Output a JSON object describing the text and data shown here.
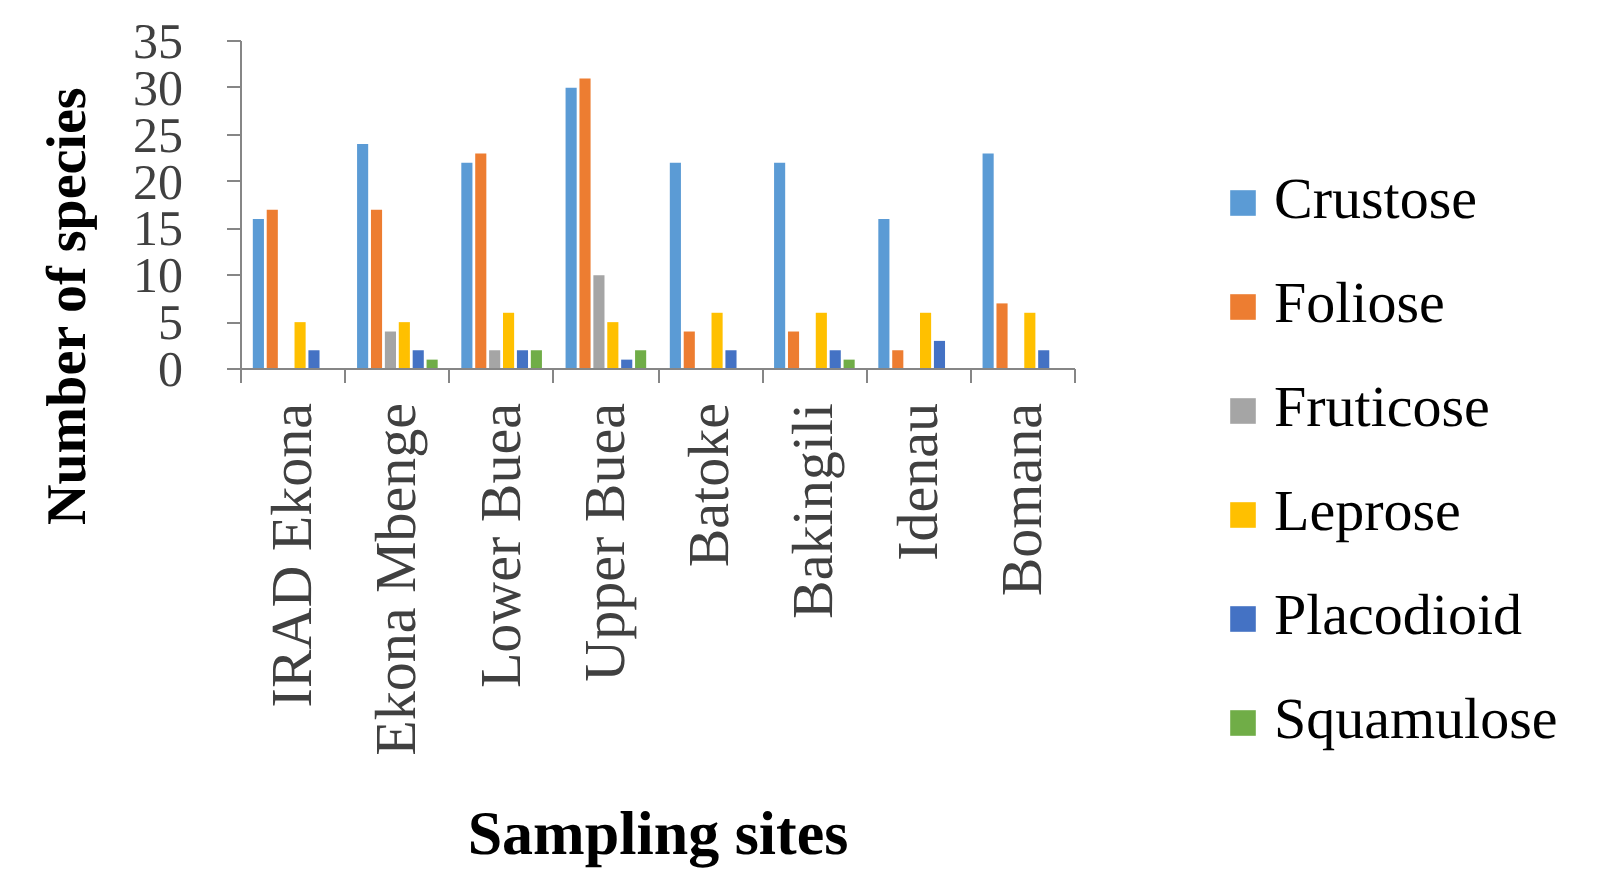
{
  "chart_data": {
    "type": "bar",
    "xlabel": "Sampling sites",
    "ylabel": "Number of species",
    "categories": [
      "IRAD Ekona",
      "Ekona Mbenge",
      "Lower Buea",
      "Upper Buea",
      "Batoke",
      "Bakingili",
      "Idenau",
      "Bomana"
    ],
    "series": [
      {
        "name": "Crustose",
        "color": "#5b9bd5",
        "values": [
          16,
          24,
          22,
          30,
          22,
          22,
          16,
          23
        ]
      },
      {
        "name": "Foliose",
        "color": "#ed7d31",
        "values": [
          17,
          17,
          23,
          31,
          4,
          4,
          2,
          7
        ]
      },
      {
        "name": "Fruticose",
        "color": "#a5a5a5",
        "values": [
          0,
          4,
          2,
          10,
          0,
          0,
          0,
          0
        ]
      },
      {
        "name": "Leprose",
        "color": "#ffc000",
        "values": [
          5,
          5,
          6,
          5,
          6,
          6,
          6,
          6
        ]
      },
      {
        "name": "Placodioid",
        "color": "#4472c4",
        "values": [
          2,
          2,
          2,
          1,
          2,
          2,
          3,
          2
        ]
      },
      {
        "name": "Squamulose",
        "color": "#70ad47",
        "values": [
          0,
          1,
          2,
          2,
          0,
          1,
          0,
          0
        ]
      }
    ],
    "ylim": [
      0,
      35
    ],
    "yticks": [
      0,
      5,
      10,
      15,
      20,
      25,
      30,
      35
    ],
    "grid": false,
    "legend": "right"
  }
}
